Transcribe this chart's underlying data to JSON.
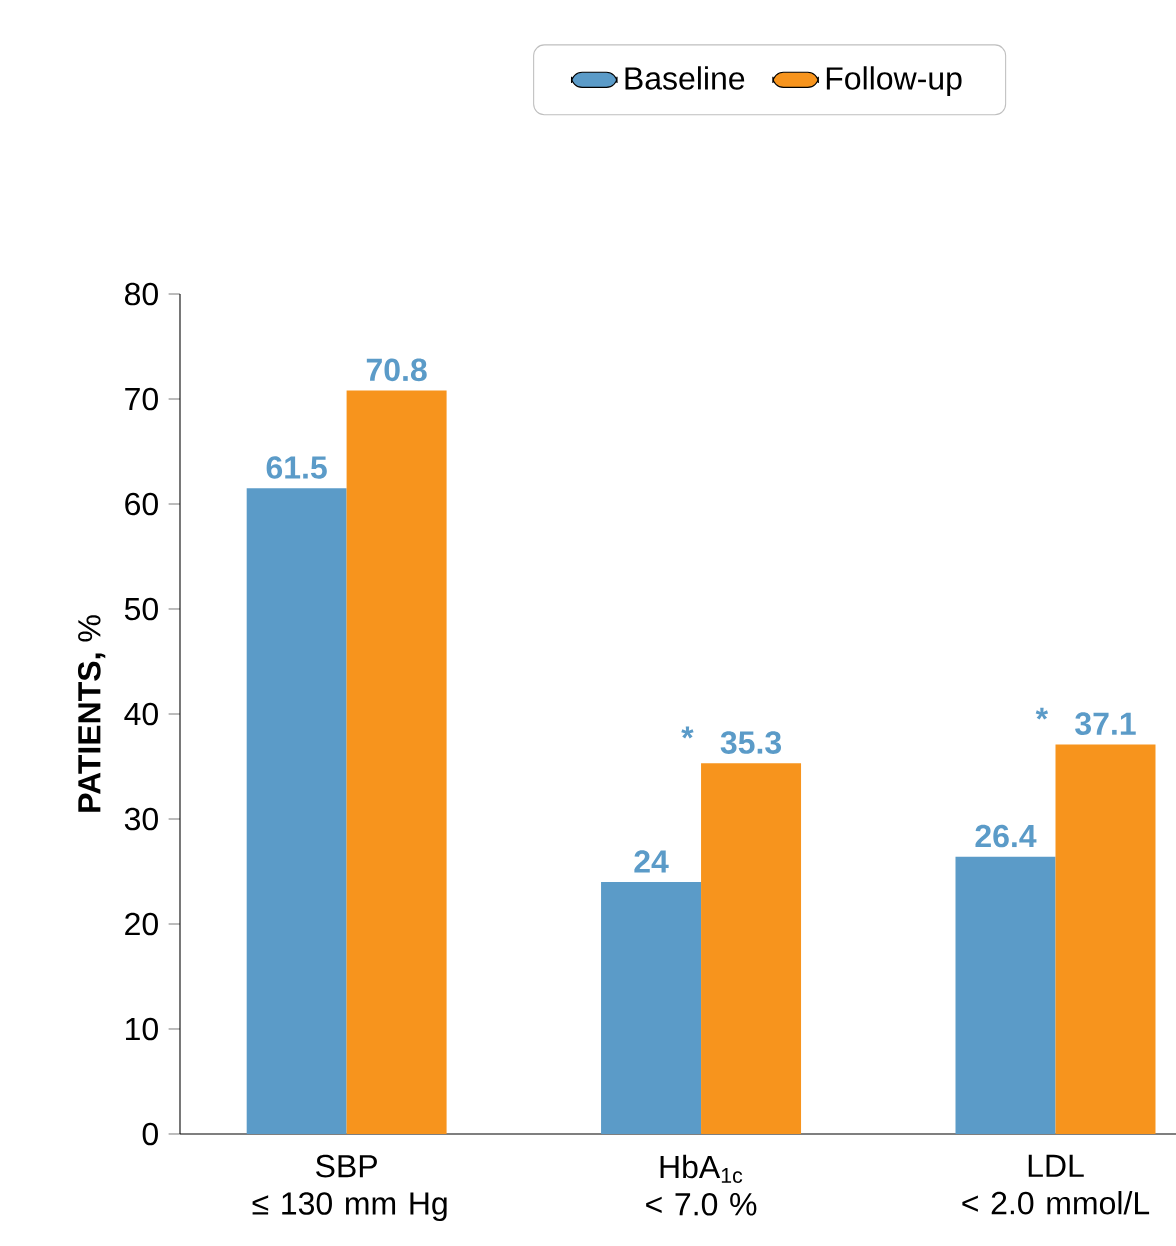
{
  "chart_data": {
    "type": "bar",
    "ylabel": "**PATIENTS,** %",
    "categories": [
      "SBP ≤ 130 mm Hg",
      "HbA$_{1c}$ < 7.0 %",
      "LDL < 2.0 mmol/L"
    ],
    "series": [
      {
        "name": "Baseline",
        "color": "#5b9bc8",
        "values": [
          61.5,
          24,
          26.4
        ]
      },
      {
        "name": "Follow-up",
        "color": "#f7941d",
        "values": [
          70.8,
          35.3,
          37.1
        ]
      }
    ],
    "ylim": [
      0,
      80
    ],
    "yticks": [
      0,
      10,
      20,
      30,
      40,
      50,
      60,
      70,
      80
    ],
    "data_labels": true,
    "grid": false,
    "legend": "top",
    "annotations": [
      {
        "text": "*",
        "x": "HbA$_{1c}$ < 7.0 %",
        "y": 35.3
      },
      {
        "text": "*",
        "x": "LDL < 2.0 mmol/L",
        "y": 37.1
      }
    ]
  }
}
